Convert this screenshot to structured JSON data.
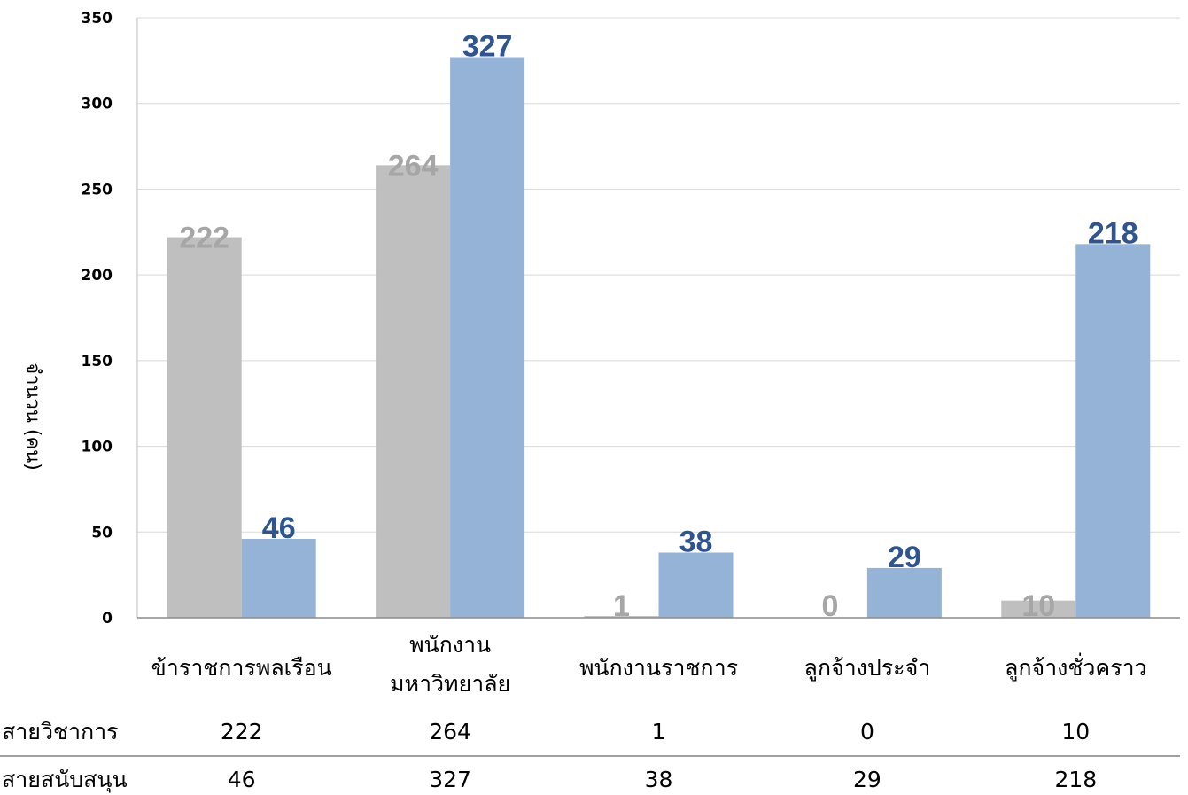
{
  "chart_data": {
    "type": "bar",
    "ylabel": "จำนวน (คน)",
    "ylim": [
      0,
      350
    ],
    "yticks": [
      "0",
      "50",
      "100",
      "150",
      "200",
      "250",
      "300",
      "350"
    ],
    "grid": true,
    "categories": [
      [
        "ข้าราชการพลเรือน"
      ],
      [
        "พนักงาน",
        "มหาวิทยาลัย"
      ],
      [
        "พนักงานราชการ"
      ],
      [
        "ลูกจ้างประจำ"
      ],
      [
        "ลูกจ้างชั่วคราว"
      ]
    ],
    "series": [
      {
        "name": "สายวิชาการ",
        "color": "#bfbfbf",
        "label_color": "#a6a6a6",
        "values": [
          222,
          264,
          1,
          0,
          10
        ]
      },
      {
        "name": "สายสนับสนุน",
        "color": "#95b3d7",
        "label_color": "#2e5590",
        "values": [
          46,
          327,
          38,
          29,
          218
        ]
      }
    ],
    "table": {
      "rows": [
        {
          "label": "สายวิชาการ",
          "values": [
            "222",
            "264",
            "1",
            "0",
            "10"
          ]
        },
        {
          "label": "สายสนับสนุน",
          "values": [
            "46",
            "327",
            "38",
            "29",
            "218"
          ]
        }
      ]
    }
  }
}
